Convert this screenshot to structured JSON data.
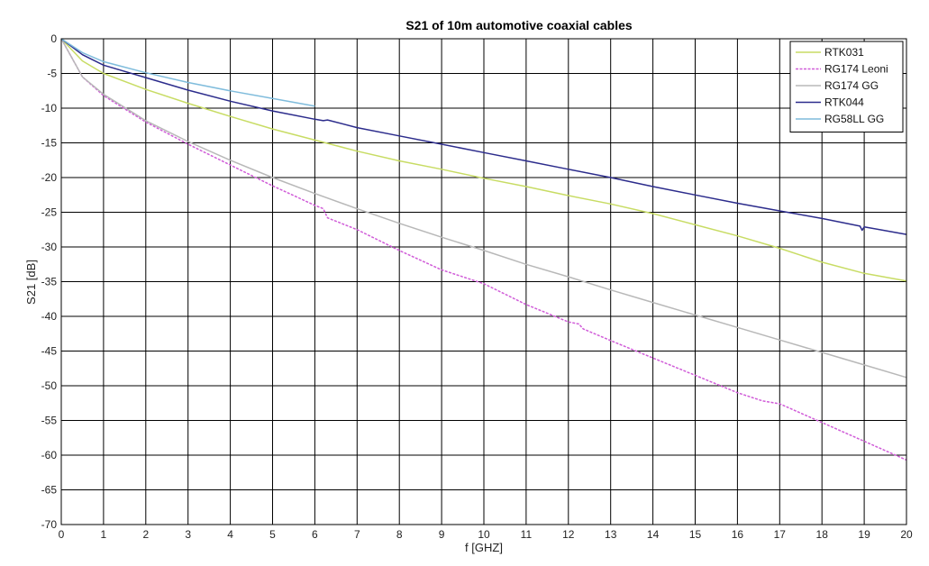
{
  "chart_data": {
    "type": "line",
    "title": "S21 of 10m automotive coaxial cables",
    "xlabel": "f [GHZ]",
    "ylabel": "S21 [dB]",
    "xlim": [
      0,
      20
    ],
    "ylim": [
      -70,
      0
    ],
    "xticks": [
      0,
      1,
      2,
      3,
      4,
      5,
      6,
      7,
      8,
      9,
      10,
      11,
      12,
      13,
      14,
      15,
      16,
      17,
      18,
      19,
      20
    ],
    "yticks": [
      0,
      -5,
      -10,
      -15,
      -20,
      -25,
      -30,
      -35,
      -40,
      -45,
      -50,
      -55,
      -60,
      -65,
      -70
    ],
    "grid": true,
    "legend_position": "top-right",
    "series": [
      {
        "name": "RTK031",
        "color": "#c8dc64",
        "style": "solid",
        "x": [
          0,
          0.5,
          1,
          2,
          3,
          4,
          5,
          6,
          7,
          8,
          9,
          10,
          11,
          12,
          13,
          14,
          15,
          16,
          17,
          18,
          19,
          20
        ],
        "y": [
          0,
          -3.2,
          -5,
          -7.3,
          -9.3,
          -11.2,
          -13,
          -14.6,
          -16.2,
          -17.6,
          -18.8,
          -20.1,
          -21.3,
          -22.6,
          -23.8,
          -25.2,
          -26.8,
          -28.4,
          -30.2,
          -32.2,
          -33.8,
          -34.9
        ]
      },
      {
        "name": "RG174 Leoni",
        "color": "#d05cd8",
        "style": "dashed",
        "x": [
          0,
          0.5,
          1,
          2,
          3,
          4,
          5,
          6,
          6.2,
          6.3,
          7,
          8,
          9,
          10,
          11,
          12,
          12.25,
          12.35,
          13,
          14,
          15,
          16,
          16.6,
          17,
          18,
          19,
          20
        ],
        "y": [
          0,
          -5.5,
          -8.2,
          -12,
          -15.2,
          -18.2,
          -21.2,
          -24,
          -24.5,
          -25.8,
          -27.5,
          -30.5,
          -33.3,
          -35.3,
          -38.3,
          -40.8,
          -41.1,
          -41.8,
          -43.5,
          -46,
          -48.5,
          -51,
          -52.2,
          -52.6,
          -55.3,
          -58,
          -60.7
        ]
      },
      {
        "name": "RG174 GG",
        "color": "#b8b8b8",
        "style": "solid",
        "x": [
          0,
          0.5,
          1,
          2,
          3,
          4,
          5,
          6,
          7,
          8,
          9,
          10,
          11,
          12,
          13,
          14,
          15,
          16,
          17,
          18,
          19,
          20
        ],
        "y": [
          0,
          -5.5,
          -8,
          -11.8,
          -14.8,
          -17.5,
          -20,
          -22.3,
          -24.5,
          -26.6,
          -28.6,
          -30.5,
          -32.5,
          -34.3,
          -36.2,
          -38,
          -39.8,
          -41.6,
          -43.4,
          -45.2,
          -47,
          -48.8
        ]
      },
      {
        "name": "RTK044",
        "color": "#2c2c8c",
        "style": "solid",
        "x": [
          0,
          0.5,
          1,
          2,
          3,
          4,
          5,
          6,
          6.2,
          6.3,
          7,
          8,
          9,
          10,
          11,
          12,
          13,
          14,
          15,
          16,
          17,
          18,
          18.9,
          18.95,
          19,
          20
        ],
        "y": [
          0,
          -2.3,
          -3.8,
          -5.6,
          -7.4,
          -9,
          -10.4,
          -11.6,
          -11.8,
          -11.7,
          -12.8,
          -14,
          -15.2,
          -16.4,
          -17.6,
          -18.8,
          -20,
          -21.3,
          -22.5,
          -23.7,
          -24.8,
          -25.9,
          -27,
          -27.6,
          -27.1,
          -28.2
        ]
      },
      {
        "name": "RG58LL GG",
        "color": "#7fbcdc",
        "style": "solid",
        "x": [
          0,
          0.5,
          1,
          2,
          3,
          4,
          5,
          6
        ],
        "y": [
          0,
          -2,
          -3.3,
          -4.9,
          -6.3,
          -7.5,
          -8.6,
          -9.7
        ]
      }
    ]
  }
}
